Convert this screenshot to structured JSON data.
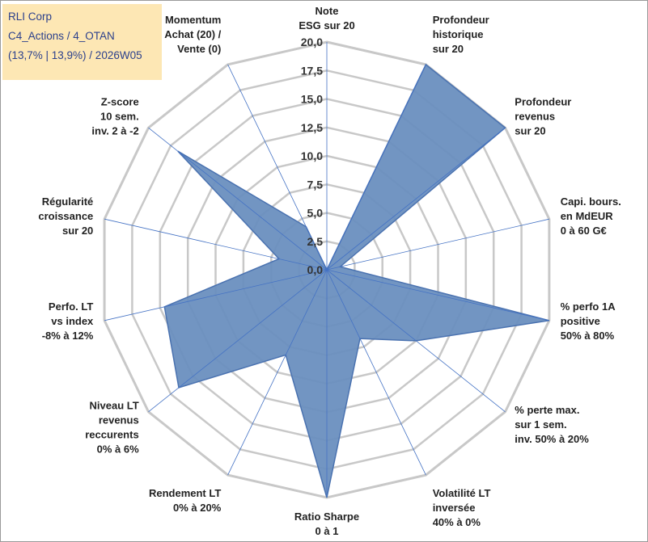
{
  "info_box": {
    "line1": "RLI Corp",
    "line2": "C4_Actions / 4_OTAN",
    "line3": "(13,7% | 13,9%) / 2026W05",
    "background": "#fde7b4",
    "text_color": "#2a3f8c"
  },
  "chart_data": {
    "type": "radar",
    "r_min": 0,
    "r_max": 20,
    "tick_values": [
      0,
      2.5,
      5,
      7.5,
      10,
      12.5,
      15,
      17.5,
      20
    ],
    "tick_labels": [
      "0,0",
      "2,5",
      "5,0",
      "7,5",
      "10,0",
      "12,5",
      "15,0",
      "17,5",
      "20,0"
    ],
    "grid": true,
    "legend": "none",
    "fill_color": "#6a8fbf",
    "line_color": "#4a72b0",
    "grid_color": "#c8c8c8",
    "spoke_color": "#4472c4",
    "axes": [
      {
        "lines": [
          "Note",
          "ESG sur 20"
        ],
        "value": 0
      },
      {
        "lines": [
          "Profondeur",
          "historique",
          "sur 20"
        ],
        "value": 20
      },
      {
        "lines": [
          "Profondeur",
          "revenus",
          "sur 20"
        ],
        "value": 20
      },
      {
        "lines": [
          "Capi. bours.",
          "en MdEUR",
          "0 à 60 G€"
        ],
        "value": 1.2
      },
      {
        "lines": [
          "% perfo 1A",
          "positive",
          "50% à 80%"
        ],
        "value": 20
      },
      {
        "lines": [
          "% perte max.",
          "sur 1 sem.",
          "inv. 50% à 20%"
        ],
        "value": 10
      },
      {
        "lines": [
          "Volatilité LT",
          "inversée",
          "40% à 0%"
        ],
        "value": 6.7
      },
      {
        "lines": [
          "Ratio Sharpe",
          "0 à 1"
        ],
        "value": 20
      },
      {
        "lines": [
          "Rendement LT",
          "0% à 20%"
        ],
        "value": 8.3
      },
      {
        "lines": [
          "Niveau LT",
          "revenus",
          "reccurents",
          "0% à 6%"
        ],
        "value": 16.6
      },
      {
        "lines": [
          "Perfo. LT",
          "vs index",
          "-8% à 12%"
        ],
        "value": 14.6
      },
      {
        "lines": [
          "Régularité",
          "croissance",
          "sur 20"
        ],
        "value": 4.3
      },
      {
        "lines": [
          "Z-score",
          "10 sem.",
          "inv. 2 à -2"
        ],
        "value": 16.7
      },
      {
        "lines": [
          "Momentum",
          "Achat (20) /",
          "Vente (0)"
        ],
        "value": 4.2
      }
    ]
  }
}
